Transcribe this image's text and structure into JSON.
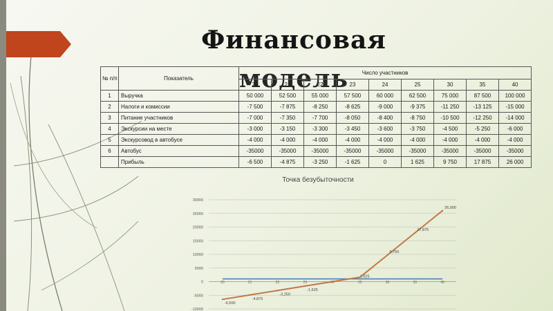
{
  "slide": {
    "title": "Финансовая модель",
    "colors": {
      "accent": "#c0441c",
      "left_bar": "#8a8a7e",
      "line_revenue_gap": "#4d7fbf",
      "line_profit": "#c0784a"
    }
  },
  "table": {
    "col_num": "№ п/п",
    "col_indicator": "Показатель",
    "col_group": "Число участников",
    "participants": [
      "20",
      "21",
      "22",
      "23",
      "24",
      "25",
      "30",
      "35",
      "40"
    ],
    "rows": [
      {
        "num": "1",
        "name": "Выручка",
        "values": [
          "50 000",
          "52 500",
          "55 000",
          "57 500",
          "60 000",
          "62 500",
          "75 000",
          "87 500",
          "100 000"
        ]
      },
      {
        "num": "2",
        "name": "Налоги и комиссии",
        "values": [
          "-7 500",
          "-7 875",
          "-8 250",
          "-8 625",
          "-9 000",
          "-9 375",
          "-11 250",
          "-13 125",
          "-15 000"
        ]
      },
      {
        "num": "3",
        "name": "Питание участников",
        "values": [
          "-7 000",
          "-7 350",
          "-7 700",
          "-8 050",
          "-8 400",
          "-8 750",
          "-10 500",
          "-12 250",
          "-14 000"
        ]
      },
      {
        "num": "4",
        "name": "Экскурсии на месте",
        "values": [
          "-3 000",
          "-3 150",
          "-3 300",
          "-3 450",
          "-3 600",
          "-3 750",
          "-4 500",
          "-5 250",
          "-6 000"
        ]
      },
      {
        "num": "5",
        "name": "Экскурсовод в автобусе",
        "values": [
          "-4 000",
          "-4 000",
          "-4 000",
          "-4 000",
          "-4 000",
          "-4 000",
          "-4 000",
          "-4 000",
          "-4 000"
        ]
      },
      {
        "num": "6",
        "name": "Автобус",
        "values": [
          "-35000",
          "-35000",
          "-35000",
          "-35000",
          "-35000",
          "-35000",
          "-35000",
          "-35000",
          "-35000"
        ]
      },
      {
        "num": "",
        "name": "Прибыль",
        "values": [
          "-6 500",
          "-4 875",
          "-3 250",
          "-1 625",
          "0",
          "1 625",
          "9 750",
          "17 875",
          "26 000"
        ]
      }
    ]
  },
  "chart_data": {
    "type": "line",
    "title": "Точка безубыточности",
    "categories": [
      "20",
      "21",
      "22",
      "23",
      "24",
      "25",
      "30",
      "35",
      "40"
    ],
    "y_ticks": [
      "30000",
      "25000",
      "20000",
      "15000",
      "10000",
      "5000",
      "0",
      "-5000",
      "-10000"
    ],
    "ylim": [
      -10000,
      30000
    ],
    "grid": true,
    "series": [
      {
        "values": [
          1000,
          1000,
          1000,
          1000,
          1000,
          1000,
          1000,
          1000,
          1000
        ],
        "color": "#4d7fbf",
        "labels": [
          "",
          "",
          "",
          "",
          "",
          "1,625",
          "",
          "",
          ""
        ]
      },
      {
        "values": [
          -6500,
          -4875,
          -3250,
          -1625,
          0,
          1625,
          9750,
          17875,
          26000
        ],
        "color": "#c0784a",
        "labels": [
          "-6,500",
          "-4,875",
          "-3,250",
          "-1,625",
          "",
          "",
          "9,750",
          "17,875",
          "26,000"
        ]
      }
    ]
  }
}
